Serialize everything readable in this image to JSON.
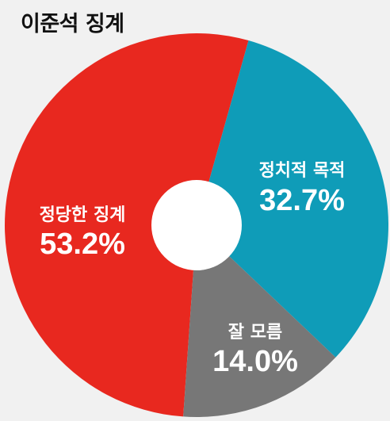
{
  "chart_data": {
    "type": "pie",
    "title": "이준석 징계",
    "slices": [
      {
        "label": "정당한 징계",
        "value": 53.2,
        "display": "53.2%",
        "color": "#e8281f"
      },
      {
        "label": "정치적 목적",
        "value": 32.7,
        "display": "32.7%",
        "color": "#0f9cb8"
      },
      {
        "label": "잘 모름",
        "value": 14.0,
        "display": "14.0%",
        "color": "#777777"
      }
    ]
  },
  "colors": {
    "background": "#f1f1f1",
    "hole": "#ffffff",
    "label_text": "#ffffff",
    "title_text": "#111111"
  }
}
